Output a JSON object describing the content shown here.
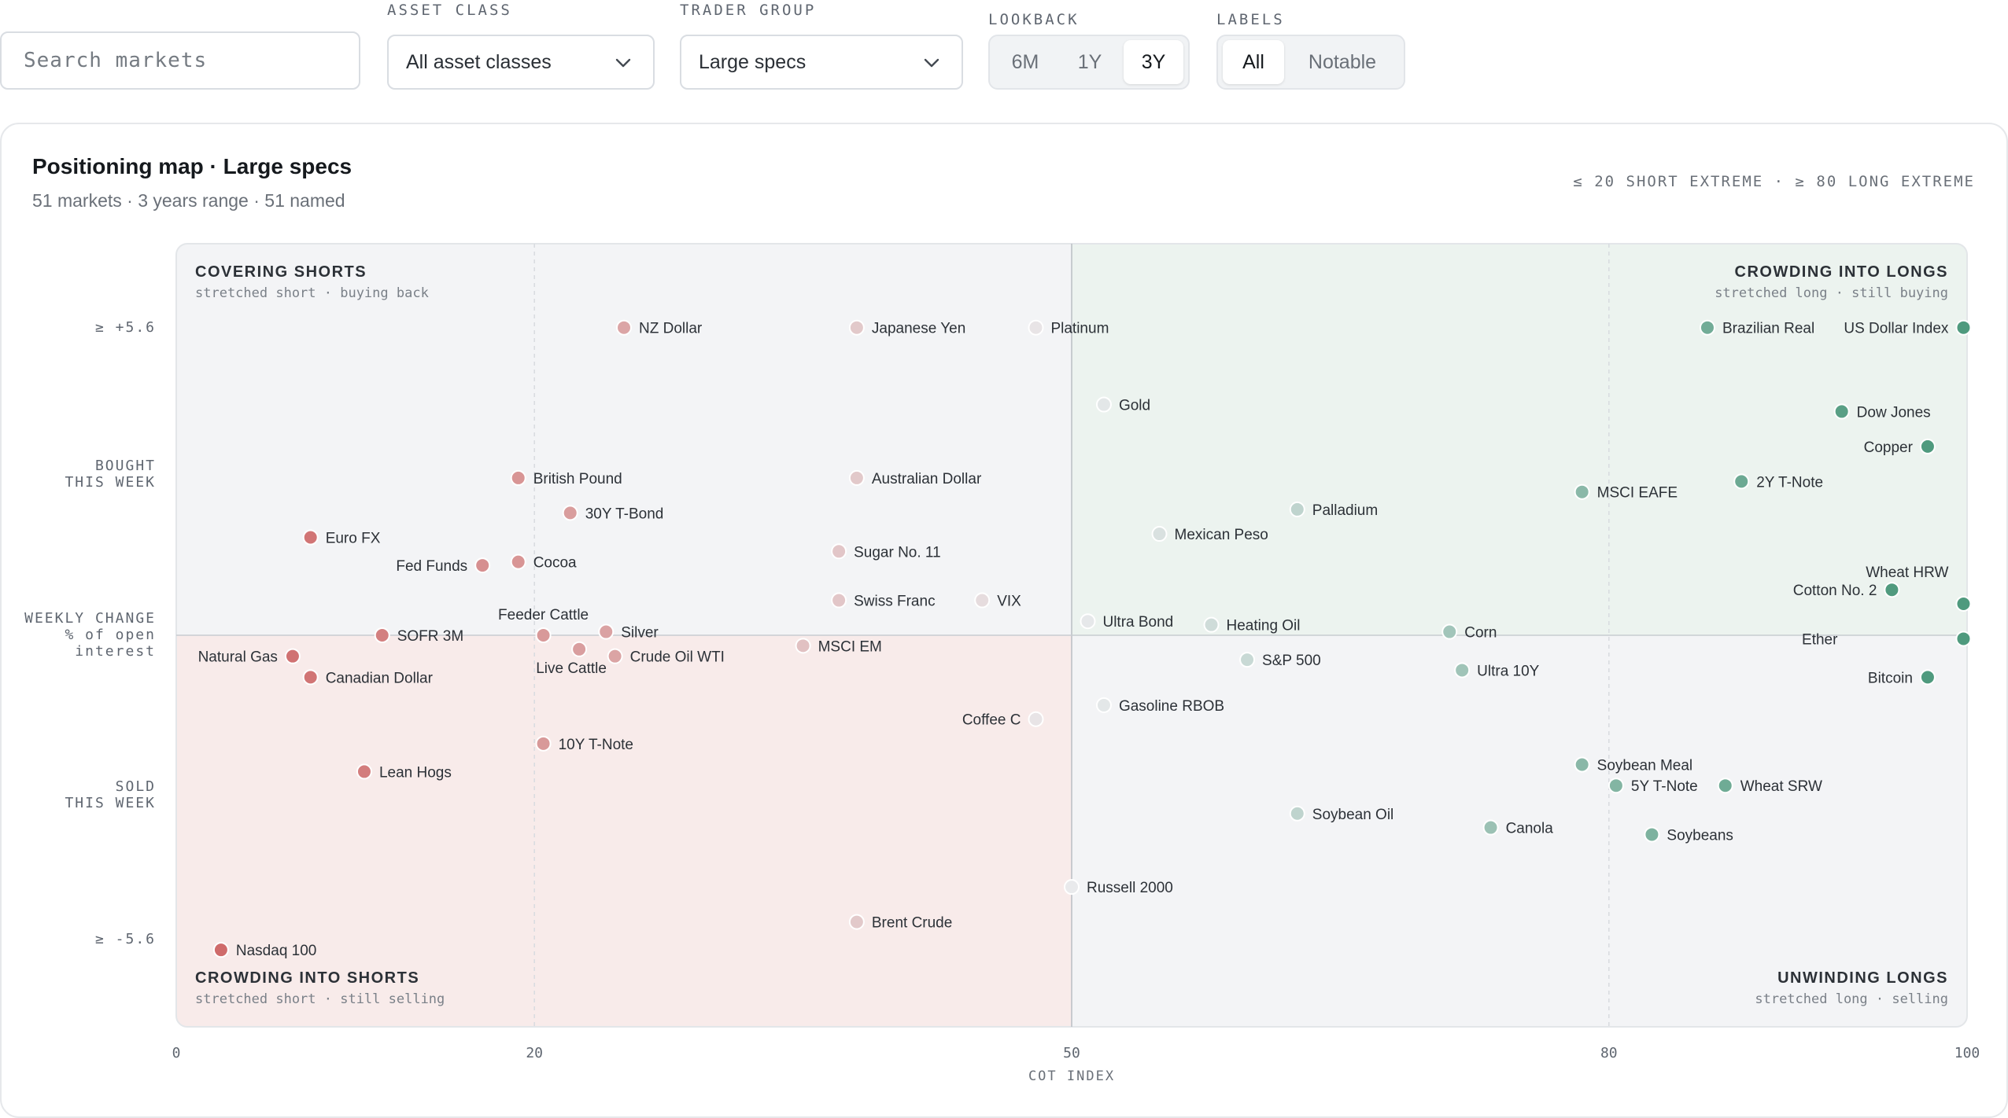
{
  "filters": {
    "search_placeholder": "Search markets",
    "asset_class": {
      "label": "ASSET CLASS",
      "value": "All asset classes"
    },
    "trader_group": {
      "label": "TRADER GROUP",
      "value": "Large specs"
    },
    "lookback": {
      "label": "LOOKBACK",
      "options": [
        "6M",
        "1Y",
        "3Y"
      ],
      "selected": "3Y"
    },
    "labels": {
      "label": "LABELS",
      "options": [
        "All",
        "Notable"
      ],
      "selected": "All"
    }
  },
  "card": {
    "title": "Positioning map · Large specs",
    "subtitle": "51 markets · 3 years range · 51 named",
    "extremes_note": "≤ 20 SHORT EXTREME · ≥ 80 LONG EXTREME"
  },
  "y_axis": {
    "top": "≥ +5.6",
    "bought": [
      "BOUGHT",
      "THIS WEEK"
    ],
    "title": [
      "WEEKLY CHANGE",
      "% of open",
      "interest"
    ],
    "sold": [
      "SOLD",
      "THIS WEEK"
    ],
    "bottom": "≥ -5.6"
  },
  "quadrants": {
    "top_left": {
      "title": "COVERING SHORTS",
      "sub": "stretched short · buying back"
    },
    "top_right": {
      "title": "CROWDING INTO LONGS",
      "sub": "stretched long · still buying"
    },
    "bottom_left": {
      "title": "CROWDING INTO SHORTS",
      "sub": "stretched short · still selling"
    },
    "bottom_right": {
      "title": "UNWINDING LONGS",
      "sub": "stretched long · selling"
    }
  },
  "colors": {
    "short": "#cf6b6b",
    "long": "#4f9a7e",
    "neutral": "#e9eaec",
    "top_left_bg": "#f3f4f6",
    "top_right_bg": "#ecf3ef",
    "bottom_left_bg": "#f8ebea",
    "bottom_right_bg": "#f3f4f6"
  },
  "chart_data": {
    "type": "scatter",
    "xlabel": "COT INDEX",
    "xlim": [
      0,
      100
    ],
    "ylim": [
      -5.6,
      5.6
    ],
    "xticks": [
      0,
      20,
      50,
      80,
      100
    ],
    "extremes": {
      "short": 20,
      "long": 80
    },
    "points": [
      {
        "name": "NZ Dollar",
        "x": 25,
        "y": 4.4
      },
      {
        "name": "Japanese Yen",
        "x": 38,
        "y": 4.4
      },
      {
        "name": "Platinum",
        "x": 48,
        "y": 4.4
      },
      {
        "name": "Brazilian Real",
        "x": 85.5,
        "y": 4.4
      },
      {
        "name": "US Dollar Index",
        "x": 99.8,
        "y": 4.4
      },
      {
        "name": "Gold",
        "x": 51.8,
        "y": 3.3
      },
      {
        "name": "Dow Jones",
        "x": 93,
        "y": 3.2
      },
      {
        "name": "Copper",
        "x": 97.8,
        "y": 2.7
      },
      {
        "name": "British Pound",
        "x": 19.1,
        "y": 2.25
      },
      {
        "name": "Australian Dollar",
        "x": 38,
        "y": 2.25
      },
      {
        "name": "2Y T-Note",
        "x": 87.4,
        "y": 2.2
      },
      {
        "name": "MSCI EAFE",
        "x": 78.5,
        "y": 2.05
      },
      {
        "name": "Palladium",
        "x": 62.6,
        "y": 1.8
      },
      {
        "name": "30Y T-Bond",
        "x": 22,
        "y": 1.75
      },
      {
        "name": "Mexican Peso",
        "x": 54.9,
        "y": 1.45
      },
      {
        "name": "Euro FX",
        "x": 7.5,
        "y": 1.4
      },
      {
        "name": "Sugar No. 11",
        "x": 37,
        "y": 1.2
      },
      {
        "name": "Cocoa",
        "x": 19.1,
        "y": 1.05
      },
      {
        "name": "Fed Funds",
        "x": 17.1,
        "y": 1.0
      },
      {
        "name": "Cotton No. 2",
        "x": 95.8,
        "y": 0.65
      },
      {
        "name": "Swiss Franc",
        "x": 37,
        "y": 0.5
      },
      {
        "name": "VIX",
        "x": 45,
        "y": 0.5
      },
      {
        "name": "Wheat HRW",
        "x": 99.8,
        "y": 0.45
      },
      {
        "name": "Ultra Bond",
        "x": 50.9,
        "y": 0.2
      },
      {
        "name": "Heating Oil",
        "x": 57.8,
        "y": 0.15
      },
      {
        "name": "Corn",
        "x": 71.1,
        "y": 0.05
      },
      {
        "name": "Silver",
        "x": 24,
        "y": 0.05
      },
      {
        "name": "SOFR 3M",
        "x": 11.5,
        "y": 0.0
      },
      {
        "name": "Feeder Cattle",
        "x": 20.5,
        "y": 0.0
      },
      {
        "name": "Ether",
        "x": 99.8,
        "y": -0.05
      },
      {
        "name": "Live Cattle",
        "x": 22.5,
        "y": -0.2
      },
      {
        "name": "MSCI EM",
        "x": 35,
        "y": -0.15
      },
      {
        "name": "Natural Gas",
        "x": 6.5,
        "y": -0.3
      },
      {
        "name": "Crude Oil WTI",
        "x": 24.5,
        "y": -0.3
      },
      {
        "name": "S&P 500",
        "x": 59.8,
        "y": -0.35
      },
      {
        "name": "Canadian Dollar",
        "x": 7.5,
        "y": -0.6
      },
      {
        "name": "Ultra 10Y",
        "x": 71.8,
        "y": -0.5
      },
      {
        "name": "Bitcoin",
        "x": 97.8,
        "y": -0.6
      },
      {
        "name": "Gasoline RBOB",
        "x": 51.8,
        "y": -1.0
      },
      {
        "name": "Coffee C",
        "x": 48,
        "y": -1.2
      },
      {
        "name": "10Y T-Note",
        "x": 20.5,
        "y": -1.55
      },
      {
        "name": "Lean Hogs",
        "x": 10.5,
        "y": -1.95
      },
      {
        "name": "Soybean Meal",
        "x": 78.5,
        "y": -1.85
      },
      {
        "name": "5Y T-Note",
        "x": 80.4,
        "y": -2.15
      },
      {
        "name": "Wheat SRW",
        "x": 86.5,
        "y": -2.15
      },
      {
        "name": "Soybean Oil",
        "x": 62.6,
        "y": -2.55
      },
      {
        "name": "Canola",
        "x": 73.4,
        "y": -2.75
      },
      {
        "name": "Soybeans",
        "x": 82.4,
        "y": -2.85
      },
      {
        "name": "Russell 2000",
        "x": 50,
        "y": -3.6
      },
      {
        "name": "Brent Crude",
        "x": 38,
        "y": -4.1
      },
      {
        "name": "Nasdaq 100",
        "x": 2.5,
        "y": -4.5
      }
    ]
  }
}
